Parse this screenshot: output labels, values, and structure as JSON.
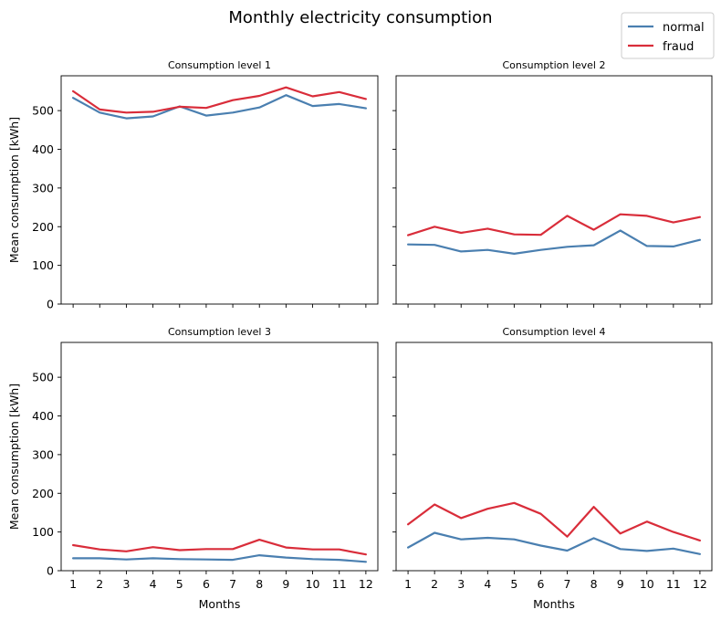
{
  "figure": {
    "title": "Monthly electricity consumption",
    "legend": {
      "placement": "top-right",
      "items": [
        {
          "label": "normal",
          "color": "#4a7fb0"
        },
        {
          "label": "fraud",
          "color": "#d92d3a"
        }
      ]
    }
  },
  "chart_data": [
    {
      "type": "line",
      "title": "Consumption level 1",
      "xlabel": "",
      "ylabel": "Mean consumption [kWh]",
      "x": [
        1,
        2,
        3,
        4,
        5,
        6,
        7,
        8,
        9,
        10,
        11,
        12
      ],
      "ylim": [
        0,
        590
      ],
      "yticks": [
        0,
        100,
        200,
        300,
        400,
        500
      ],
      "series": [
        {
          "name": "normal",
          "color": "#4a7fb0",
          "values": [
            533,
            495,
            480,
            485,
            511,
            487,
            495,
            508,
            540,
            512,
            517,
            506
          ]
        },
        {
          "name": "fraud",
          "color": "#d92d3a",
          "values": [
            550,
            503,
            495,
            497,
            510,
            507,
            527,
            538,
            560,
            537,
            548,
            530
          ]
        }
      ]
    },
    {
      "type": "line",
      "title": "Consumption level 2",
      "xlabel": "",
      "ylabel": "",
      "x": [
        1,
        2,
        3,
        4,
        5,
        6,
        7,
        8,
        9,
        10,
        11,
        12
      ],
      "ylim": [
        0,
        590
      ],
      "yticks": [
        0,
        100,
        200,
        300,
        400,
        500
      ],
      "series": [
        {
          "name": "normal",
          "color": "#4a7fb0",
          "values": [
            154,
            153,
            136,
            140,
            130,
            140,
            148,
            152,
            190,
            150,
            149,
            166
          ]
        },
        {
          "name": "fraud",
          "color": "#d92d3a",
          "values": [
            178,
            200,
            184,
            195,
            180,
            179,
            228,
            192,
            232,
            228,
            211,
            225
          ]
        }
      ]
    },
    {
      "type": "line",
      "title": "Consumption level 3",
      "xlabel": "Months",
      "ylabel": "Mean consumption [kWh]",
      "x": [
        1,
        2,
        3,
        4,
        5,
        6,
        7,
        8,
        9,
        10,
        11,
        12
      ],
      "ylim": [
        0,
        590
      ],
      "yticks": [
        0,
        100,
        200,
        300,
        400,
        500
      ],
      "series": [
        {
          "name": "normal",
          "color": "#4a7fb0",
          "values": [
            32,
            32,
            29,
            32,
            30,
            29,
            28,
            40,
            34,
            30,
            28,
            23
          ]
        },
        {
          "name": "fraud",
          "color": "#d92d3a",
          "values": [
            66,
            55,
            50,
            61,
            53,
            56,
            56,
            80,
            60,
            55,
            55,
            42
          ]
        }
      ]
    },
    {
      "type": "line",
      "title": "Consumption level 4",
      "xlabel": "Months",
      "ylabel": "",
      "x": [
        1,
        2,
        3,
        4,
        5,
        6,
        7,
        8,
        9,
        10,
        11,
        12
      ],
      "ylim": [
        0,
        590
      ],
      "yticks": [
        0,
        100,
        200,
        300,
        400,
        500
      ],
      "series": [
        {
          "name": "normal",
          "color": "#4a7fb0",
          "values": [
            60,
            98,
            81,
            85,
            81,
            65,
            52,
            84,
            56,
            51,
            57,
            43
          ]
        },
        {
          "name": "fraud",
          "color": "#d92d3a",
          "values": [
            120,
            171,
            136,
            160,
            175,
            147,
            88,
            165,
            96,
            127,
            100,
            78
          ]
        }
      ]
    }
  ]
}
